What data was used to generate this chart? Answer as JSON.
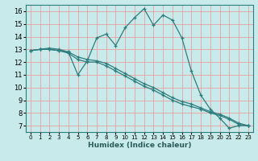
{
  "title": "",
  "xlabel": "Humidex (Indice chaleur)",
  "ylabel": "",
  "bg_color": "#c8eaea",
  "line_color": "#2d7d7d",
  "grid_color": "#e8a0a0",
  "xlim": [
    -0.5,
    23.5
  ],
  "ylim": [
    6.5,
    16.5
  ],
  "xticks": [
    0,
    1,
    2,
    3,
    4,
    5,
    6,
    7,
    8,
    9,
    10,
    11,
    12,
    13,
    14,
    15,
    16,
    17,
    18,
    19,
    20,
    21,
    22,
    23
  ],
  "yticks": [
    7,
    8,
    9,
    10,
    11,
    12,
    13,
    14,
    15,
    16
  ],
  "series": [
    {
      "x": [
        0,
        1,
        2,
        3,
        4,
        5,
        6,
        7,
        8,
        9,
        10,
        11,
        12,
        13,
        14,
        15,
        16,
        17,
        18,
        19,
        20,
        21,
        22,
        23
      ],
      "y": [
        12.9,
        13.0,
        13.1,
        13.0,
        12.8,
        11.0,
        12.1,
        13.9,
        14.2,
        13.3,
        14.7,
        15.5,
        16.2,
        14.9,
        15.7,
        15.3,
        13.9,
        11.3,
        9.4,
        8.3,
        7.6,
        6.8,
        7.0,
        7.0
      ]
    },
    {
      "x": [
        0,
        1,
        2,
        3,
        4,
        5,
        6,
        7,
        8,
        9,
        10,
        11,
        12,
        13,
        14,
        15,
        16,
        17,
        18,
        19,
        20,
        21,
        22,
        23
      ],
      "y": [
        12.9,
        13.0,
        13.0,
        12.9,
        12.7,
        12.2,
        12.0,
        12.0,
        11.7,
        11.3,
        10.9,
        10.5,
        10.1,
        9.8,
        9.4,
        9.0,
        8.7,
        8.5,
        8.3,
        8.0,
        7.8,
        7.5,
        7.1,
        7.0
      ]
    },
    {
      "x": [
        0,
        1,
        2,
        3,
        4,
        5,
        6,
        7,
        8,
        9,
        10,
        11,
        12,
        13,
        14,
        15,
        16,
        17,
        18,
        19,
        20,
        21,
        22,
        23
      ],
      "y": [
        12.9,
        13.0,
        13.0,
        12.9,
        12.8,
        12.4,
        12.2,
        12.1,
        11.9,
        11.5,
        11.1,
        10.7,
        10.3,
        10.0,
        9.6,
        9.2,
        8.9,
        8.7,
        8.4,
        8.1,
        7.9,
        7.6,
        7.2,
        7.0
      ]
    }
  ]
}
